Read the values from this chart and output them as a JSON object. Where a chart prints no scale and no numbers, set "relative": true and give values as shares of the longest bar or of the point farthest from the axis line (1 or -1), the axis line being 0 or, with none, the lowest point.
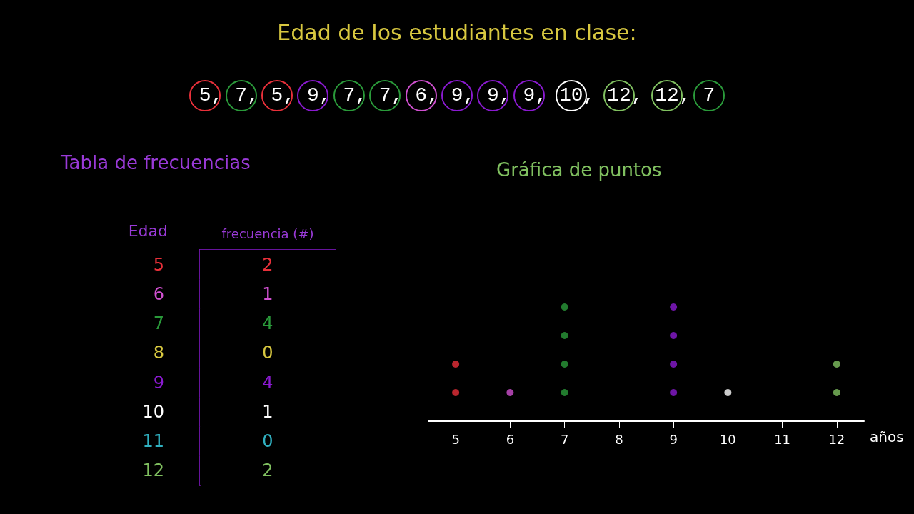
{
  "chart_data": [
    {
      "type": "other",
      "title": "Edad de los estudiantes en clase:",
      "annotations": [
        "5, 7, 5, 9, 7, 7, 6, 9, 9, 9, 10, 12, 12, 7"
      ],
      "colors": [
        "#e8303a",
        "#2a9a3a",
        "#e8303a",
        "#8a1ad0",
        "#2a9a3a",
        "#2a9a3a",
        "#d050d0",
        "#8a1ad0",
        "#8a1ad0",
        "#8a1ad0",
        "#ffffff",
        "#80c060",
        "#80c060",
        "#2a9a3a"
      ]
    },
    {
      "type": "heatmap",
      "title": "Tabla de frecuencias",
      "ylabel": "Edad",
      "categories": [
        "frecuencia (#)"
      ],
      "y_categories": [
        "5",
        "6",
        "7",
        "8",
        "9",
        "10",
        "11",
        "12"
      ],
      "cells": [
        [
          2
        ],
        [
          1
        ],
        [
          4
        ],
        [
          0
        ],
        [
          4
        ],
        [
          1
        ],
        [
          0
        ],
        [
          2
        ]
      ],
      "data_labels": true,
      "colors": [
        "#e8303a",
        "#d050d0",
        "#2a9a3a",
        "#d8c840",
        "#8a1ad0",
        "#ffffff",
        "#30b0c0",
        "#80c060"
      ]
    },
    {
      "type": "scatter",
      "title": "Gráfica de puntos",
      "xlabel": "años",
      "relative": true,
      "marker": "circle",
      "grid": false,
      "categories": [
        "5",
        "6",
        "7",
        "8",
        "9",
        "10",
        "11",
        "12"
      ],
      "series": [
        {
          "x": [
            "5",
            "5",
            "6",
            "7",
            "7",
            "7",
            "7",
            "9",
            "9",
            "9",
            "9",
            "10",
            "12",
            "12"
          ],
          "values": [
            0.25,
            0.5,
            0.25,
            0.25,
            0.5,
            0.75,
            1,
            0.25,
            0.5,
            0.75,
            1,
            0.25,
            0.25,
            0.5
          ],
          "colors": [
            "#e8303a",
            "#e8303a",
            "#d050d0",
            "#2a9a3a",
            "#2a9a3a",
            "#2a9a3a",
            "#2a9a3a",
            "#8a1ad0",
            "#8a1ad0",
            "#8a1ad0",
            "#8a1ad0",
            "#ffffff",
            "#80c060",
            "#80c060"
          ]
        }
      ]
    }
  ]
}
